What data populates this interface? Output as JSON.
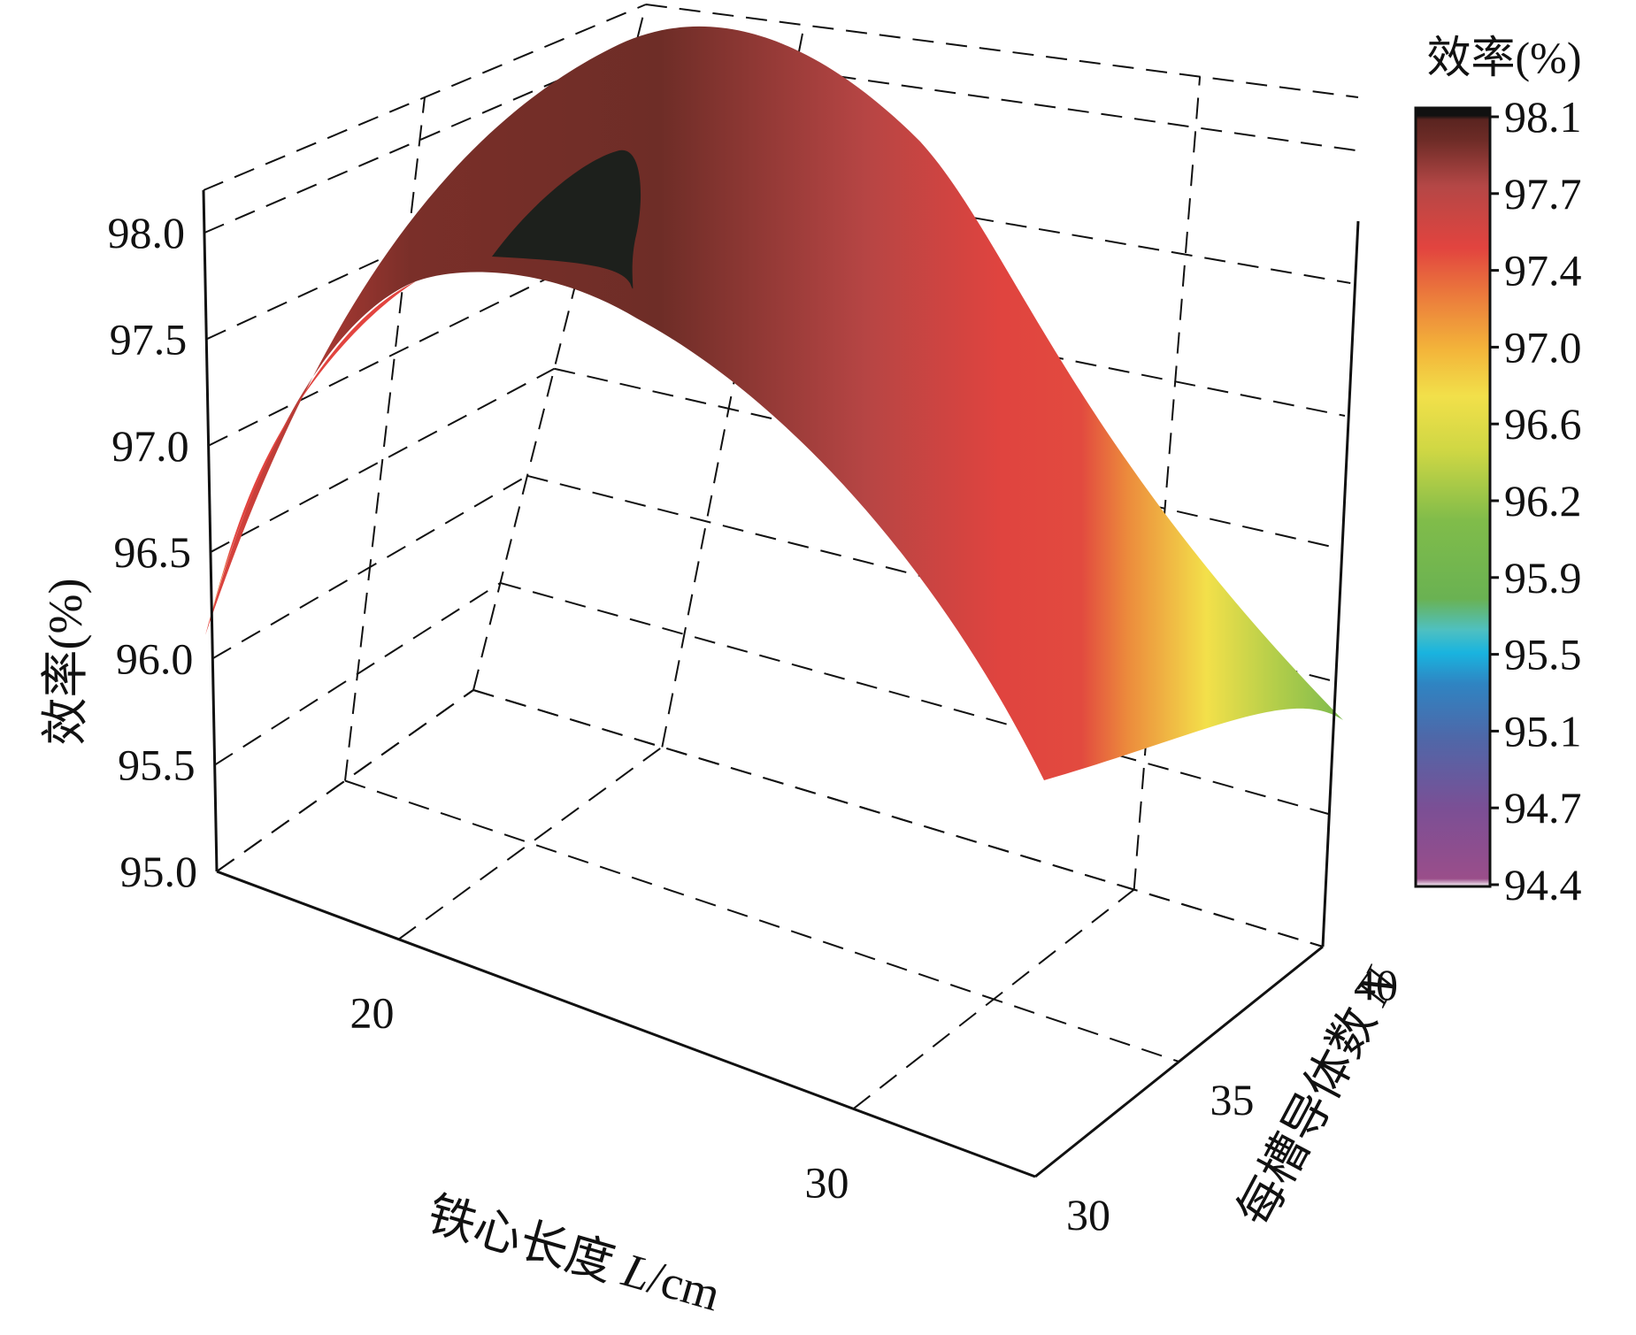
{
  "chart_data": {
    "type": "surface3d",
    "z_axis": {
      "label": "效率(%)",
      "ticks": [
        "95.0",
        "95.5",
        "96.0",
        "96.5",
        "97.0",
        "97.5",
        "98.0"
      ],
      "range": [
        95.0,
        98.2
      ]
    },
    "x_axis": {
      "label_prefix": "铁心长度 ",
      "label_var": "L",
      "label_suffix": "/cm",
      "ticks": [
        "20",
        "30"
      ],
      "range": [
        16,
        34
      ]
    },
    "y_axis": {
      "label_prefix": "每槽导体数 ",
      "label_var": "N",
      "ticks": [
        "30",
        "35",
        "40"
      ],
      "range": [
        30,
        40
      ]
    },
    "colorbar": {
      "title": "效率(%)",
      "ticks": [
        "98.1",
        "97.7",
        "97.4",
        "97.0",
        "96.6",
        "96.2",
        "95.9",
        "95.5",
        "95.1",
        "94.7",
        "94.4"
      ],
      "range": [
        94.4,
        98.1
      ]
    },
    "surface": {
      "description_peak_efficiency": 98.1,
      "samples": [
        {
          "L": 16,
          "N": 30,
          "eta": 96.3
        },
        {
          "L": 22,
          "N": 30,
          "eta": 98.0
        },
        {
          "L": 34,
          "N": 30,
          "eta": 96.0
        },
        {
          "L": 16,
          "N": 40,
          "eta": 97.0
        },
        {
          "L": 22,
          "N": 40,
          "eta": 98.1
        },
        {
          "L": 34,
          "N": 40,
          "eta": 95.7
        }
      ]
    },
    "grid": true
  }
}
